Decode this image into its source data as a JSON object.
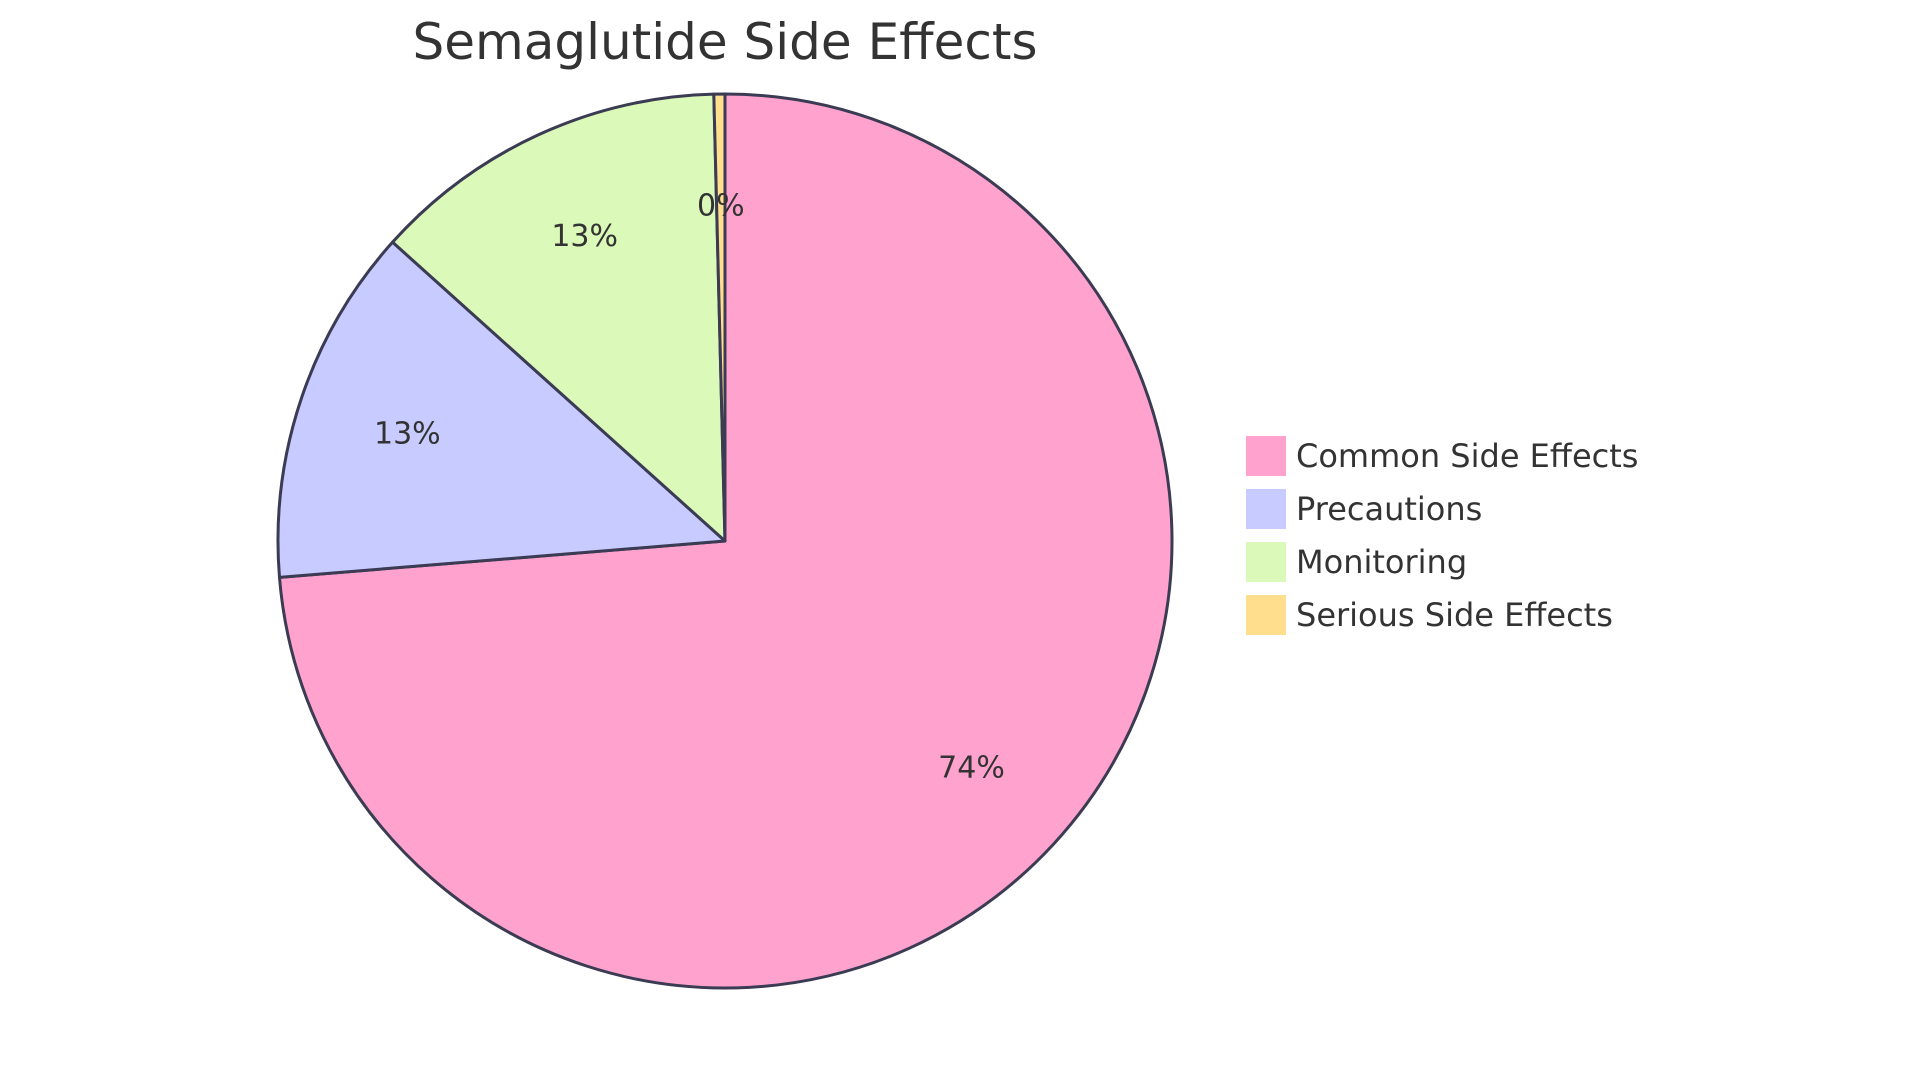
{
  "chart_data": {
    "type": "pie",
    "title": "Semaglutide Side Effects",
    "slices": [
      {
        "label": "Common Side Effects",
        "value": 74,
        "display": "74%",
        "color": "#FFA3CE"
      },
      {
        "label": "Precautions",
        "value": 13,
        "display": "13%",
        "color": "#C8CBFF"
      },
      {
        "label": "Monitoring",
        "value": 13,
        "display": "13%",
        "color": "#DBF9B8"
      },
      {
        "label": "Serious Side Effects",
        "value": 0.4,
        "display": "0%",
        "color": "#FFDE8E"
      }
    ],
    "legend_position": "right"
  },
  "colors": {
    "stroke": "#3b3b54",
    "text": "#333333"
  }
}
